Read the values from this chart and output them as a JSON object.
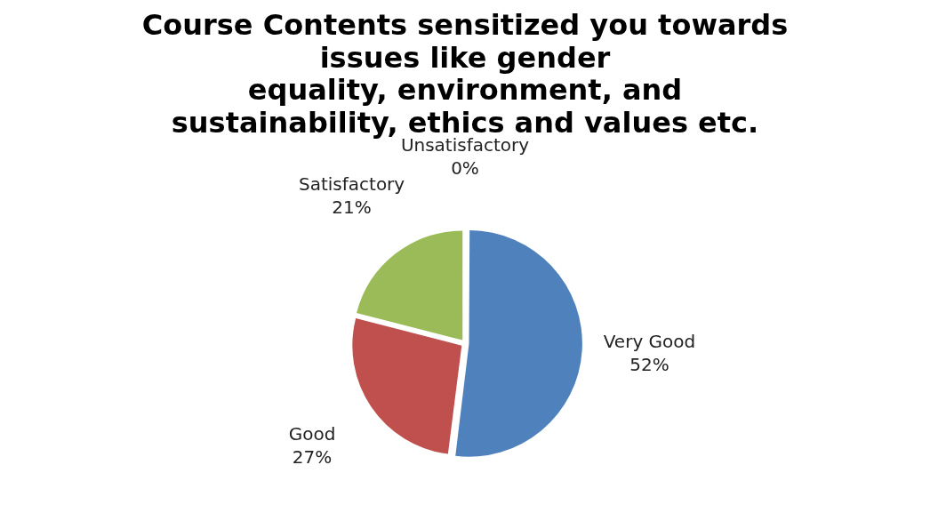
{
  "chart_data": {
    "type": "pie",
    "title": "Course Contents sensitized you towards\nissues like gender\nequality, environment, and\nsustainability, ethics and values etc.",
    "categories": [
      "Very Good",
      "Good",
      "Satisfactory",
      "Unsatisfactory"
    ],
    "values": [
      52,
      27,
      21,
      0
    ],
    "colors": [
      "#4f81bd",
      "#c0504d",
      "#9bbb59",
      "#8064a2"
    ],
    "value_labels": [
      "52%",
      "27%",
      "21%",
      "0%"
    ],
    "legend": false
  }
}
